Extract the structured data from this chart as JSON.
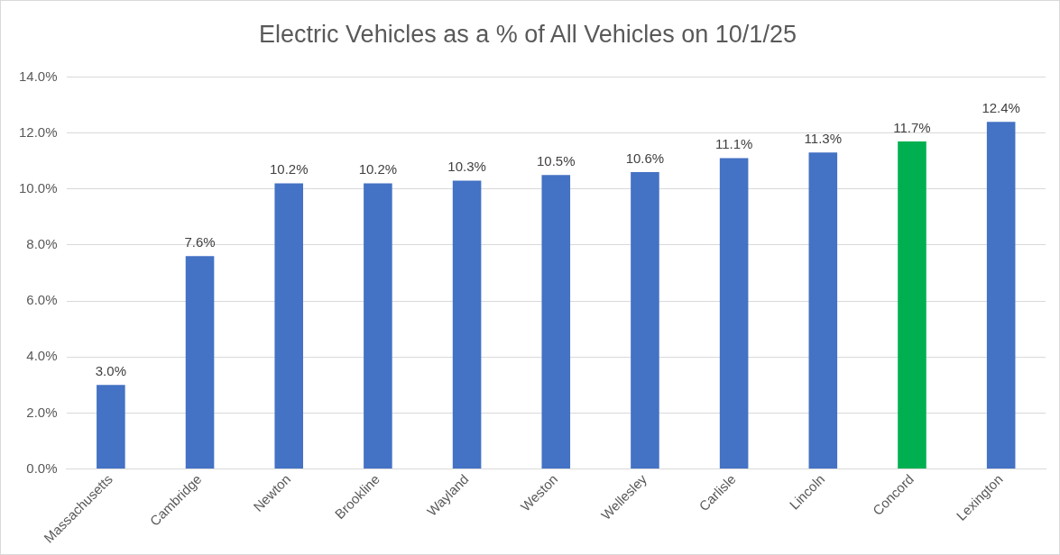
{
  "chart_data": {
    "type": "bar",
    "title": "Electric Vehicles as a % of All Vehicles on 10/1/25",
    "categories": [
      "Massachusetts",
      "Cambridge",
      "Newton",
      "Brookline",
      "Wayland",
      "Weston",
      "Wellesley",
      "Carlisle",
      "Lincoln",
      "Concord",
      "Lexington"
    ],
    "values": [
      3.0,
      7.6,
      10.2,
      10.2,
      10.3,
      10.5,
      10.6,
      11.1,
      11.3,
      11.7,
      12.4
    ],
    "colors": [
      "#4472c4",
      "#4472c4",
      "#4472c4",
      "#4472c4",
      "#4472c4",
      "#4472c4",
      "#4472c4",
      "#4472c4",
      "#4472c4",
      "#00b050",
      "#4472c4"
    ],
    "value_labels": [
      "3.0%",
      "7.6%",
      "10.2%",
      "10.2%",
      "10.3%",
      "10.5%",
      "10.6%",
      "11.1%",
      "11.3%",
      "11.7%",
      "12.4%"
    ],
    "ylim": [
      0,
      14
    ],
    "yticks": [
      {
        "value": 0,
        "label": "0.0%"
      },
      {
        "value": 2,
        "label": "2.0%"
      },
      {
        "value": 4,
        "label": "4.0%"
      },
      {
        "value": 6,
        "label": "6.0%"
      },
      {
        "value": 8,
        "label": "8.0%"
      },
      {
        "value": 10,
        "label": "10.0%"
      },
      {
        "value": 12,
        "label": "12.0%"
      },
      {
        "value": 14,
        "label": "14.0%"
      }
    ],
    "grid": "y",
    "legend": false
  }
}
